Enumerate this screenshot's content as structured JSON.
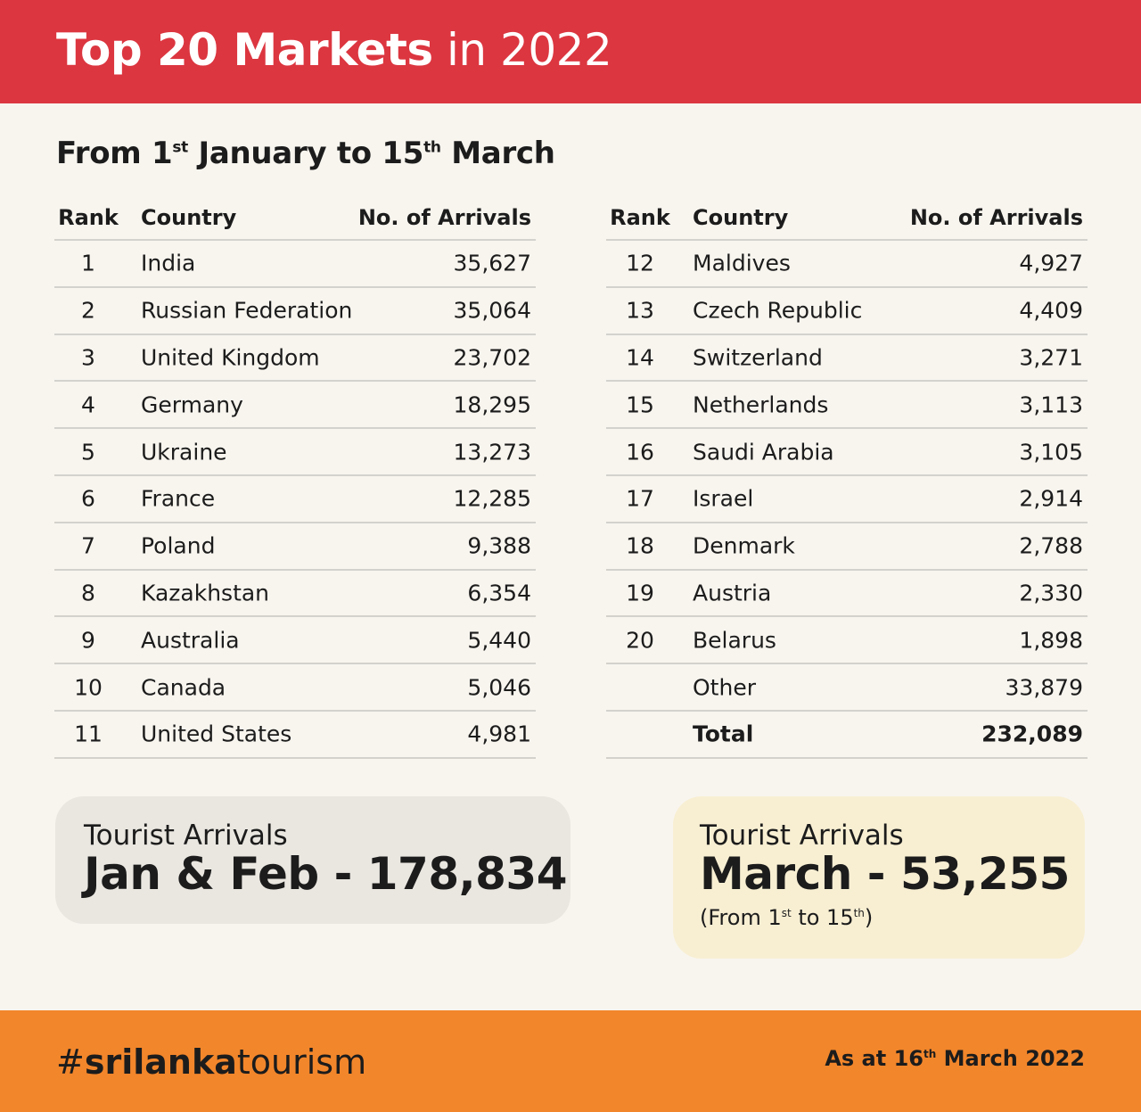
{
  "header": {
    "title_bold": "Top 20 Markets",
    "title_rest": " in 2022"
  },
  "subtitle": {
    "p1": "From 1",
    "sup1": "st",
    "p2": " January to 15",
    "sup2": "th",
    "p3": " March"
  },
  "table": {
    "headers": {
      "rank": "Rank",
      "country": "Country",
      "arrivals": "No. of Arrivals"
    },
    "left_rows": [
      {
        "rank": "1",
        "country": "India",
        "arrivals": "35,627"
      },
      {
        "rank": "2",
        "country": "Russian Federation",
        "arrivals": "35,064"
      },
      {
        "rank": "3",
        "country": "United Kingdom",
        "arrivals": "23,702"
      },
      {
        "rank": "4",
        "country": "Germany",
        "arrivals": "18,295"
      },
      {
        "rank": "5",
        "country": "Ukraine",
        "arrivals": "13,273"
      },
      {
        "rank": "6",
        "country": "France",
        "arrivals": "12,285"
      },
      {
        "rank": "7",
        "country": "Poland",
        "arrivals": "9,388"
      },
      {
        "rank": "8",
        "country": "Kazakhstan",
        "arrivals": "6,354"
      },
      {
        "rank": "9",
        "country": "Australia",
        "arrivals": "5,440"
      },
      {
        "rank": "10",
        "country": "Canada",
        "arrivals": "5,046"
      },
      {
        "rank": "11",
        "country": "United States",
        "arrivals": "4,981"
      }
    ],
    "right_rows": [
      {
        "rank": "12",
        "country": "Maldives",
        "arrivals": "4,927"
      },
      {
        "rank": "13",
        "country": "Czech Republic",
        "arrivals": "4,409"
      },
      {
        "rank": "14",
        "country": "Switzerland",
        "arrivals": "3,271"
      },
      {
        "rank": "15",
        "country": "Netherlands",
        "arrivals": "3,113"
      },
      {
        "rank": "16",
        "country": "Saudi Arabia",
        "arrivals": "3,105"
      },
      {
        "rank": "17",
        "country": "Israel",
        "arrivals": "2,914"
      },
      {
        "rank": "18",
        "country": "Denmark",
        "arrivals": "2,788"
      },
      {
        "rank": "19",
        "country": "Austria",
        "arrivals": "2,330"
      },
      {
        "rank": "20",
        "country": "Belarus",
        "arrivals": "1,898"
      },
      {
        "rank": "",
        "country": "Other",
        "arrivals": "33,879"
      },
      {
        "rank": "",
        "country": "Total",
        "arrivals": "232,089",
        "total": true
      }
    ]
  },
  "summary": {
    "jan_feb": {
      "label": "Tourist Arrivals",
      "value": "Jan & Feb - 178,834"
    },
    "march": {
      "label": "Tourist Arrivals",
      "value": "March - 53,255",
      "note_p1": "(From 1",
      "note_sup1": "st",
      "note_p2": " to 15",
      "note_sup2": "th",
      "note_p3": ")"
    }
  },
  "footer": {
    "hashtag_pre": "#",
    "hashtag_bold": "srilanka",
    "hashtag_rest": "tourism",
    "asat_p1": "As at 16",
    "asat_sup": "th",
    "asat_p2": " March 2022"
  },
  "colors": {
    "header": "#dc3640",
    "footer": "#f2862b",
    "background": "#f8f5ef",
    "box_grey": "#eae7e1",
    "box_cream": "#f8efd3"
  }
}
